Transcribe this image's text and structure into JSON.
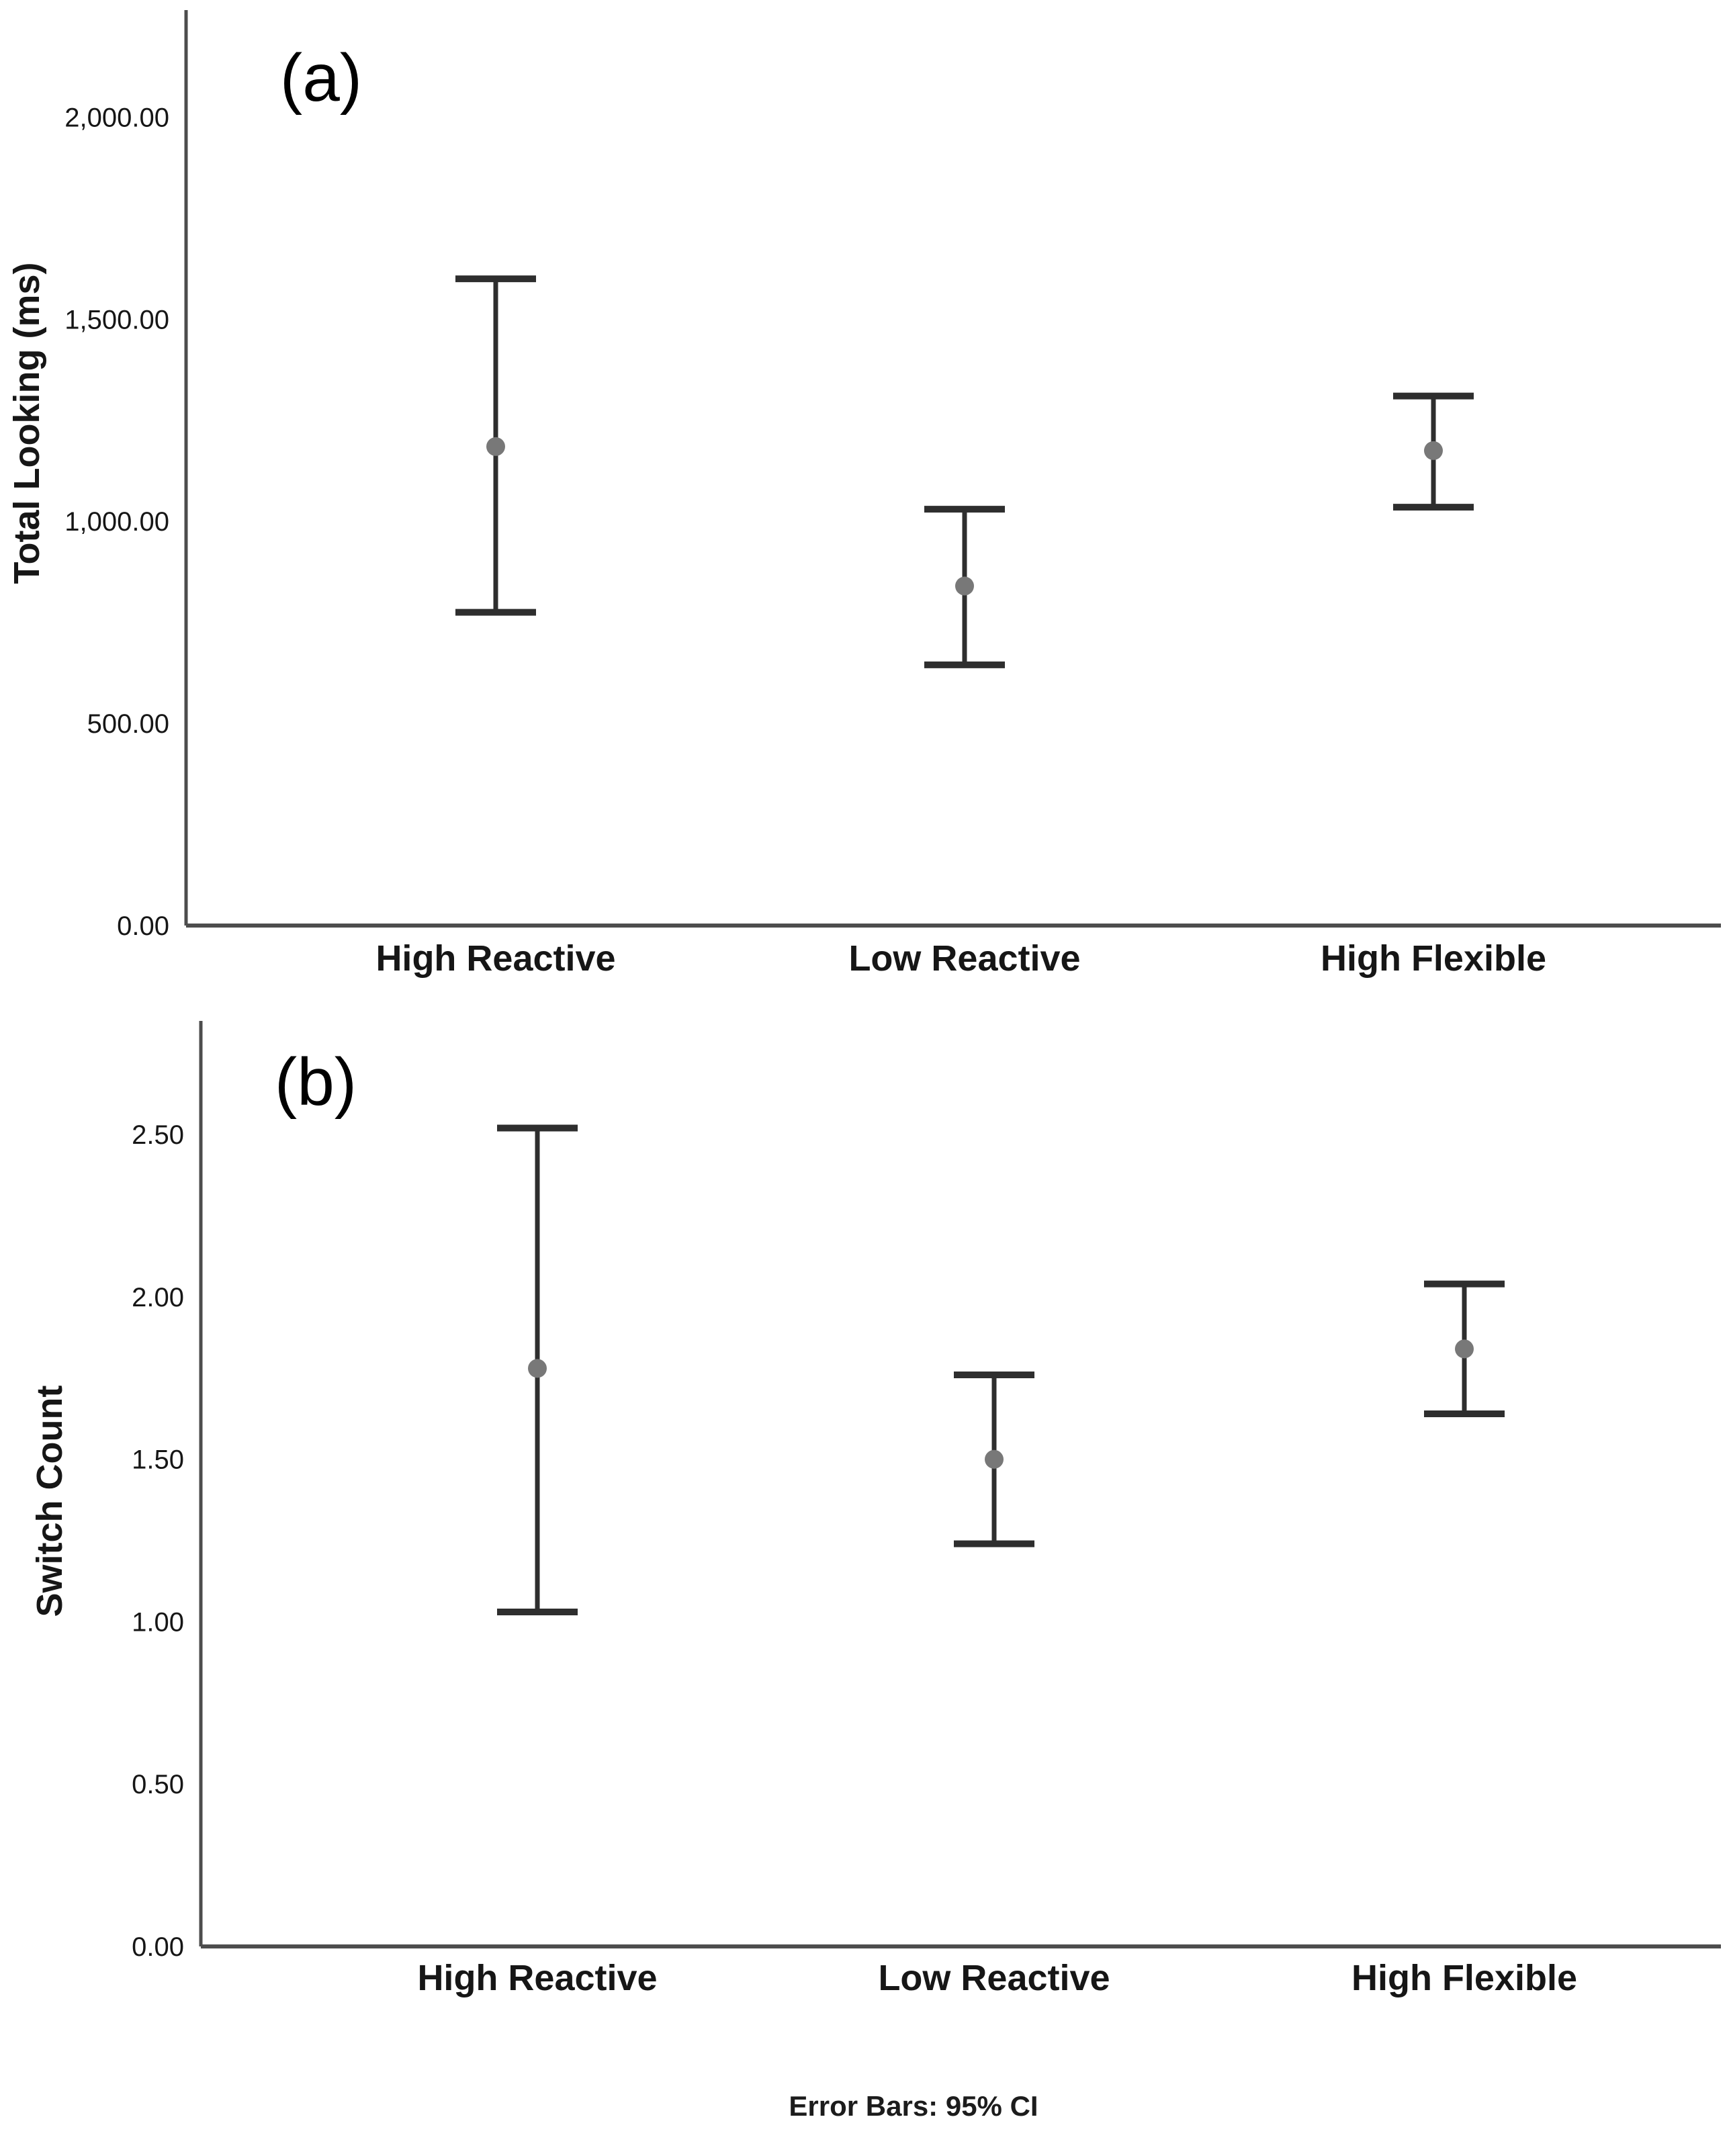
{
  "figure": {
    "background": "#ffffff",
    "footer_note": "Error Bars: 95% CI"
  },
  "colors": {
    "axis": "#4d4d4d",
    "error_bar": "#2e2e2e",
    "mean_dot": "#787878",
    "text": "#161616",
    "panel_label": "#000000"
  },
  "chart_data": [
    {
      "type": "errorbar",
      "panel_label": "(a)",
      "ylabel": "Total Looking (ms)",
      "xlabel": "",
      "categories": [
        "High Reactive",
        "Low Reactive",
        "High Flexible"
      ],
      "series": [
        {
          "name": "Mean with 95% CI",
          "means": [
            1185,
            840,
            1175
          ],
          "ci_low": [
            775,
            645,
            1035
          ],
          "ci_high": [
            1600,
            1030,
            1310
          ]
        }
      ],
      "yticks": [
        0,
        500,
        1000,
        1500,
        2000
      ],
      "ytick_labels": [
        "0.00",
        "500.00",
        "1,000.00",
        "1,500.00",
        "2,000.00"
      ],
      "ylim": [
        0,
        2265
      ],
      "grid": false,
      "error_bars": "95% CI"
    },
    {
      "type": "errorbar",
      "panel_label": "(b)",
      "ylabel": "Switch Count",
      "xlabel": "",
      "categories": [
        "High Reactive",
        "Low Reactive",
        "High Flexible"
      ],
      "series": [
        {
          "name": "Mean with 95% CI",
          "means": [
            1.78,
            1.5,
            1.84
          ],
          "ci_low": [
            1.03,
            1.24,
            1.64
          ],
          "ci_high": [
            2.52,
            1.76,
            2.04
          ]
        }
      ],
      "yticks": [
        0,
        0.5,
        1.0,
        1.5,
        2.0,
        2.5
      ],
      "ytick_labels": [
        "0.00",
        "0.50",
        "1.00",
        "1.50",
        "2.00",
        "2.50"
      ],
      "ylim": [
        0,
        2.85
      ],
      "grid": false,
      "error_bars": "95% CI"
    }
  ]
}
